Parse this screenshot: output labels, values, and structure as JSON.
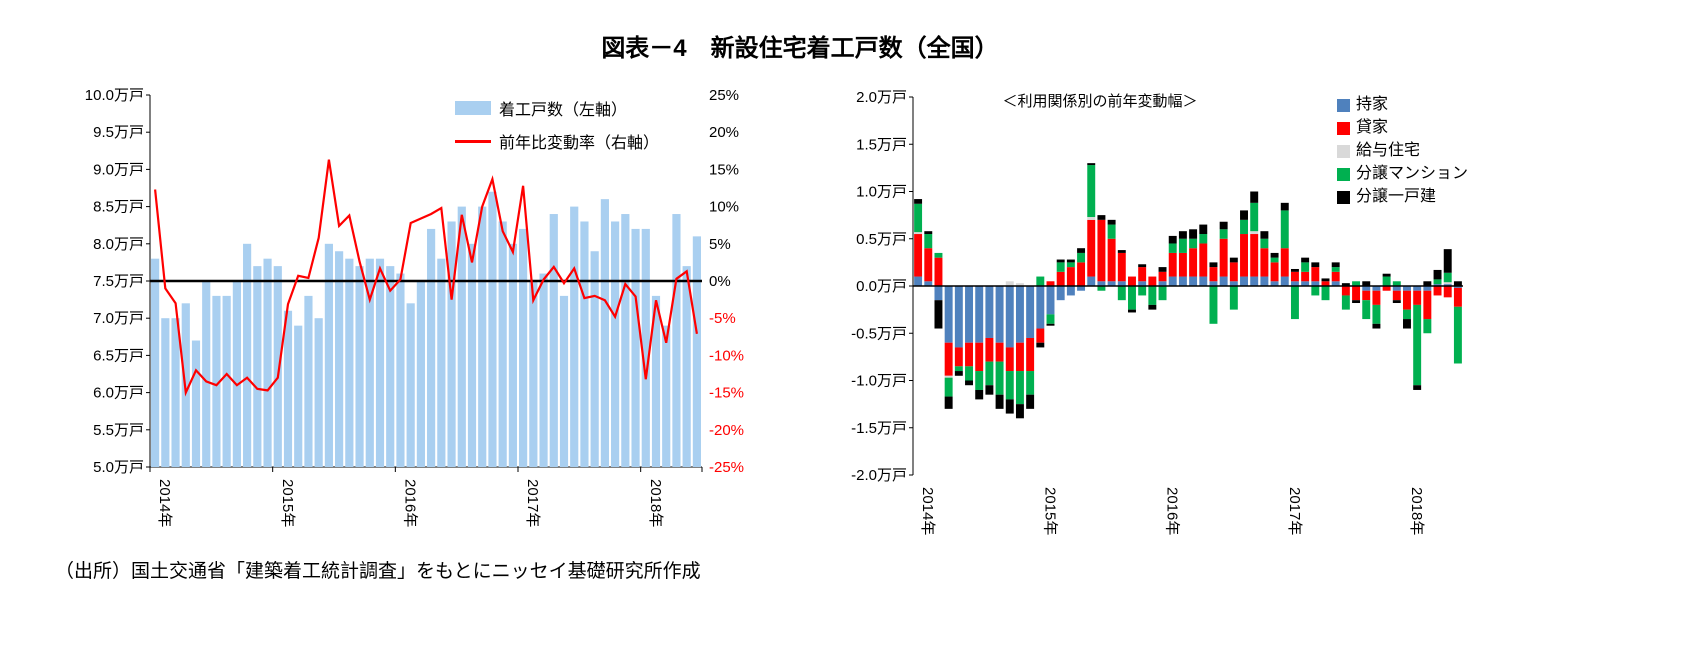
{
  "page": {
    "title": "図表－4　新設住宅着工戸数（全国）",
    "source": "（出所）国土交通省「建築着工統計調査」をもとにニッセイ基礎研究所作成"
  },
  "chart_data": [
    {
      "type": "bar",
      "subtype": "bar+line combo, monthly 2014-2018",
      "x_year_labels": [
        "2014年",
        "2015年",
        "2016年",
        "2017年",
        "2018年"
      ],
      "left_axis": {
        "min": 5.0,
        "max": 10.0,
        "step": 0.5,
        "suffix": "万戸"
      },
      "right_axis": {
        "min": -25,
        "max": 25,
        "step": 5,
        "suffix": "%"
      },
      "bar_series": {
        "name": "着工戸数（左軸）",
        "unit": "万戸",
        "values": [
          7.8,
          7.0,
          7.0,
          7.2,
          6.7,
          7.5,
          7.3,
          7.3,
          7.5,
          8.0,
          7.7,
          7.8,
          7.7,
          7.1,
          6.9,
          7.3,
          7.0,
          8.0,
          7.9,
          7.8,
          7.7,
          7.8,
          7.8,
          7.7,
          7.6,
          7.2,
          7.5,
          8.2,
          7.8,
          8.3,
          8.5,
          8.0,
          8.5,
          8.7,
          8.3,
          8.0,
          8.2,
          7.5,
          7.6,
          8.4,
          7.3,
          8.5,
          8.3,
          7.9,
          8.6,
          8.3,
          8.4,
          8.2,
          8.2,
          7.3,
          6.9,
          8.4,
          7.7,
          8.1
        ]
      },
      "line_series": {
        "name": "前年比変動率（右軸）",
        "unit": "%",
        "values": [
          12.3,
          -1.0,
          -3.0,
          -15.0,
          -12.0,
          -13.5,
          -14.0,
          -12.5,
          -14.0,
          -13.0,
          -14.5,
          -14.7,
          -13.0,
          -3.1,
          0.7,
          0.4,
          5.8,
          16.3,
          7.4,
          8.8,
          2.6,
          -2.5,
          1.7,
          -1.3,
          0.2,
          7.8,
          8.4,
          9.0,
          9.8,
          -2.5,
          8.9,
          2.5,
          10.0,
          13.7,
          6.7,
          3.9,
          12.8,
          -2.6,
          0.2,
          1.9,
          -0.3,
          1.7,
          -2.3,
          -2.0,
          -2.6,
          -4.8,
          -0.4,
          -2.1,
          -13.2,
          -2.6,
          -8.3,
          0.3,
          1.3,
          -7.1
        ]
      },
      "colors": {
        "bar": "#A9CFF0",
        "line": "#FF0000",
        "zero_line": "#000000",
        "neg_tick": "#FF0000"
      }
    },
    {
      "type": "bar",
      "subtype": "stacked-bar, monthly 2014-2018",
      "title": "＜利用関係別の前年変動幅＞",
      "x_year_labels": [
        "2014年",
        "2015年",
        "2016年",
        "2017年",
        "2018年"
      ],
      "y_axis": {
        "min": -2.0,
        "max": 2.0,
        "step": 0.5,
        "suffix": "万戸"
      },
      "series": [
        {
          "name": "持家",
          "color": "#4F81BD",
          "values": [
            0.1,
            0.05,
            -0.15,
            -0.6,
            -0.65,
            -0.6,
            -0.6,
            -0.55,
            -0.6,
            -0.65,
            -0.6,
            -0.55,
            -0.45,
            -0.3,
            -0.15,
            -0.1,
            -0.05,
            0.1,
            0.05,
            0.05,
            0.05,
            0.0,
            0.05,
            0.0,
            0.05,
            0.1,
            0.1,
            0.1,
            0.1,
            0.05,
            0.1,
            0.05,
            0.1,
            0.1,
            0.1,
            0.05,
            0.1,
            0.05,
            0.05,
            0.05,
            0.0,
            0.05,
            0.0,
            0.0,
            -0.05,
            -0.05,
            0.0,
            -0.05,
            -0.05,
            -0.05,
            -0.05,
            0.02,
            0.02,
            -0.02
          ]
        },
        {
          "name": "貸家",
          "color": "#FF0000",
          "values": [
            0.45,
            0.35,
            0.3,
            -0.35,
            -0.2,
            -0.25,
            -0.3,
            -0.25,
            -0.2,
            -0.25,
            -0.3,
            -0.35,
            -0.15,
            0.05,
            0.15,
            0.2,
            0.25,
            0.6,
            0.65,
            0.45,
            0.3,
            0.1,
            0.15,
            0.1,
            0.1,
            0.25,
            0.25,
            0.3,
            0.35,
            0.15,
            0.4,
            0.2,
            0.45,
            0.45,
            0.3,
            0.2,
            0.3,
            0.1,
            0.1,
            0.15,
            0.05,
            0.1,
            -0.1,
            -0.15,
            -0.1,
            -0.15,
            -0.05,
            -0.1,
            -0.2,
            -0.15,
            -0.3,
            -0.1,
            -0.12,
            -0.2
          ]
        },
        {
          "name": "給与住宅",
          "color": "#D9D9D9",
          "values": [
            0.02,
            0,
            0,
            -0.02,
            0,
            0,
            0,
            0,
            0,
            0.05,
            0.03,
            0,
            0,
            0,
            0,
            0,
            0,
            0.03,
            0,
            0,
            0,
            0,
            0,
            0,
            0,
            0,
            0,
            0,
            0,
            0,
            0,
            0,
            0,
            0.03,
            0,
            0,
            0,
            0,
            0,
            0,
            0,
            0,
            0,
            0,
            0,
            0,
            0,
            0,
            0,
            0,
            0,
            0,
            0.02,
            0
          ]
        },
        {
          "name": "分譲マンション",
          "color": "#00B050",
          "values": [
            0.3,
            0.15,
            0.05,
            -0.2,
            -0.05,
            -0.15,
            -0.2,
            -0.25,
            -0.35,
            -0.3,
            -0.35,
            -0.25,
            0.1,
            -0.1,
            0.1,
            0.05,
            0.1,
            0.55,
            -0.05,
            0.15,
            -0.15,
            -0.25,
            -0.1,
            -0.2,
            -0.15,
            0.1,
            0.15,
            0.1,
            0.1,
            -0.4,
            0.1,
            -0.25,
            0.15,
            0.3,
            0.1,
            0.05,
            0.4,
            -0.35,
            0.1,
            -0.1,
            -0.15,
            0.05,
            -0.15,
            0.05,
            -0.2,
            -0.2,
            0.1,
            0.05,
            -0.1,
            -0.85,
            -0.15,
            0.05,
            0.1,
            -0.6
          ]
        },
        {
          "name": "分譲一戸建",
          "color": "#000000",
          "values": [
            0.05,
            0.03,
            -0.3,
            -0.13,
            -0.05,
            -0.05,
            -0.1,
            -0.1,
            -0.15,
            -0.15,
            -0.15,
            -0.15,
            -0.05,
            -0.02,
            0.03,
            0.03,
            0.05,
            0.02,
            0.05,
            0.05,
            0.03,
            -0.03,
            0.03,
            -0.05,
            0.05,
            0.08,
            0.08,
            0.1,
            0.1,
            0.05,
            0.08,
            0.05,
            0.1,
            0.12,
            0.08,
            0.05,
            0.08,
            0.03,
            0.05,
            0.05,
            0.03,
            0.05,
            0.03,
            -0.03,
            0.05,
            -0.05,
            0.03,
            -0.03,
            -0.1,
            -0.05,
            0.05,
            0.1,
            0.25,
            0.05
          ]
        }
      ]
    }
  ]
}
